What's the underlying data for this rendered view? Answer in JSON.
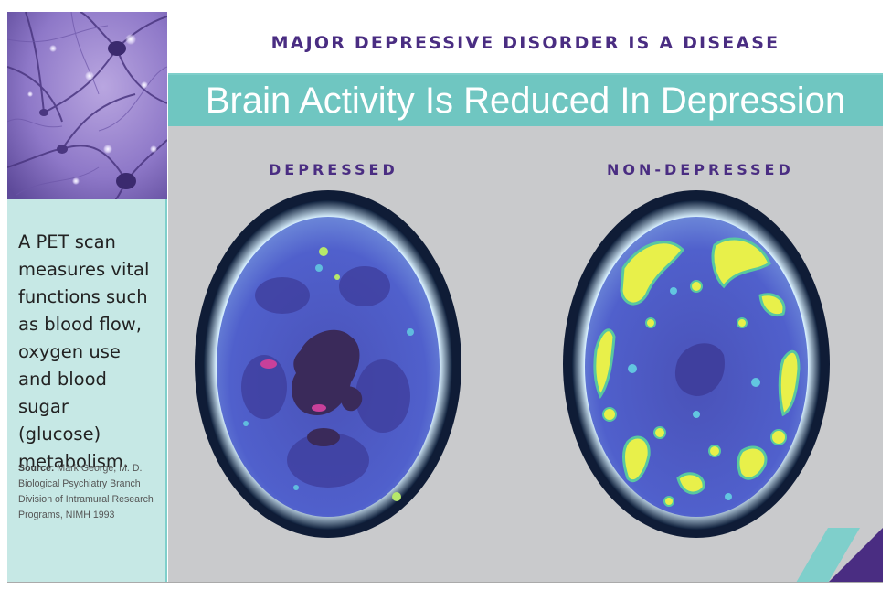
{
  "header": {
    "supertitle": "MAJOR DEPRESSIVE DISORDER IS A DISEASE",
    "title": "Brain Activity Is Reduced In Depression"
  },
  "sidebar": {
    "description": "A PET scan measures vital functions such as blood flow, oxygen use and blood sugar (glucose) metabolism.",
    "source_label": "Source:",
    "source_line1": "Mark George, M. D.",
    "source_line2": "Biological Psychiatry Branch",
    "source_line3": "Division of Intramural Research",
    "source_line4": "Programs, NIMH 1993",
    "image_name": "neuron-network-image"
  },
  "scans": [
    {
      "label": "DEPRESSED",
      "activity": "low"
    },
    {
      "label": "NON-DEPRESSED",
      "activity": "high"
    }
  ],
  "colors": {
    "purple": "#4a2d82",
    "teal": "#6fc6c1",
    "light_teal": "#c6e8e5",
    "panel_gray": "#c9cacc",
    "scan_blue": "#4d5fc8",
    "scan_dark": "#3a2a6a",
    "scan_yellow": "#e8f04a"
  }
}
